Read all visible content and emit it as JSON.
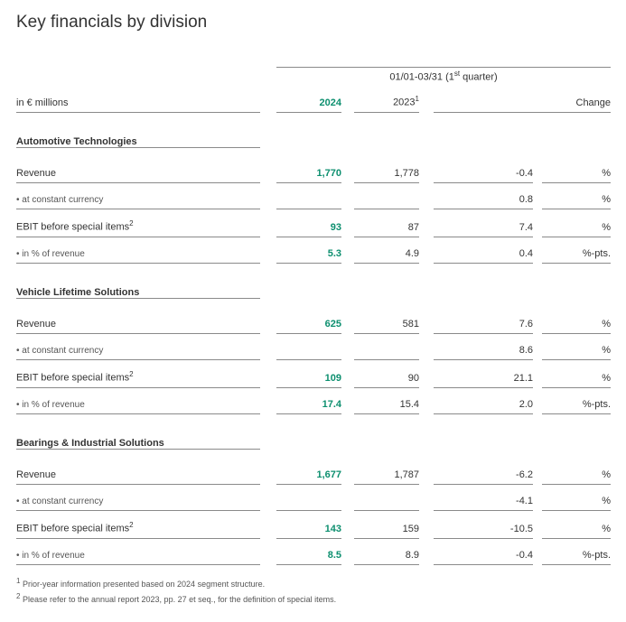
{
  "title": "Key financials by division",
  "period_label_pre": "01/01-03/31 (1",
  "period_label_sup": "st",
  "period_label_post": " quarter)",
  "unit_label": "in € millions",
  "col_2024": "2024",
  "col_2023": "2023",
  "col_change": "Change",
  "sections": {
    "auto": {
      "name": "Automotive Technologies",
      "revenue_label": "Revenue",
      "revenue_2024": "1,770",
      "revenue_2023": "1,778",
      "revenue_chg": "-0.4",
      "revenue_unit": "%",
      "cc_label": "• at constant currency",
      "cc_chg": "0.8",
      "cc_unit": "%",
      "ebit_label": "EBIT before special items",
      "ebit_2024": "93",
      "ebit_2023": "87",
      "ebit_chg": "7.4",
      "ebit_unit": "%",
      "pct_label": "• in % of revenue",
      "pct_2024": "5.3",
      "pct_2023": "4.9",
      "pct_chg": "0.4",
      "pct_unit": "%-pts."
    },
    "vls": {
      "name": "Vehicle Lifetime Solutions",
      "revenue_label": "Revenue",
      "revenue_2024": "625",
      "revenue_2023": "581",
      "revenue_chg": "7.6",
      "revenue_unit": "%",
      "cc_label": "• at constant currency",
      "cc_chg": "8.6",
      "cc_unit": "%",
      "ebit_label": "EBIT before special items",
      "ebit_2024": "109",
      "ebit_2023": "90",
      "ebit_chg": "21.1",
      "ebit_unit": "%",
      "pct_label": "• in % of revenue",
      "pct_2024": "17.4",
      "pct_2023": "15.4",
      "pct_chg": "2.0",
      "pct_unit": "%-pts."
    },
    "bis": {
      "name": "Bearings & Industrial Solutions",
      "revenue_label": "Revenue",
      "revenue_2024": "1,677",
      "revenue_2023": "1,787",
      "revenue_chg": "-6.2",
      "revenue_unit": "%",
      "cc_label": "• at constant currency",
      "cc_chg": "-4.1",
      "cc_unit": "%",
      "ebit_label": "EBIT before special items",
      "ebit_2024": "143",
      "ebit_2023": "159",
      "ebit_chg": "-10.5",
      "ebit_unit": "%",
      "pct_label": "• in % of revenue",
      "pct_2024": "8.5",
      "pct_2023": "8.9",
      "pct_chg": "-0.4",
      "pct_unit": "%-pts."
    }
  },
  "footnote1_sup": "1",
  "footnote1": " Prior-year information presented based on 2024 segment structure.",
  "footnote2_sup": "2",
  "footnote2": " Please refer to the annual report 2023, pp. 27 et seq., for the definition of special items.",
  "sup1": "1",
  "sup2": "2"
}
